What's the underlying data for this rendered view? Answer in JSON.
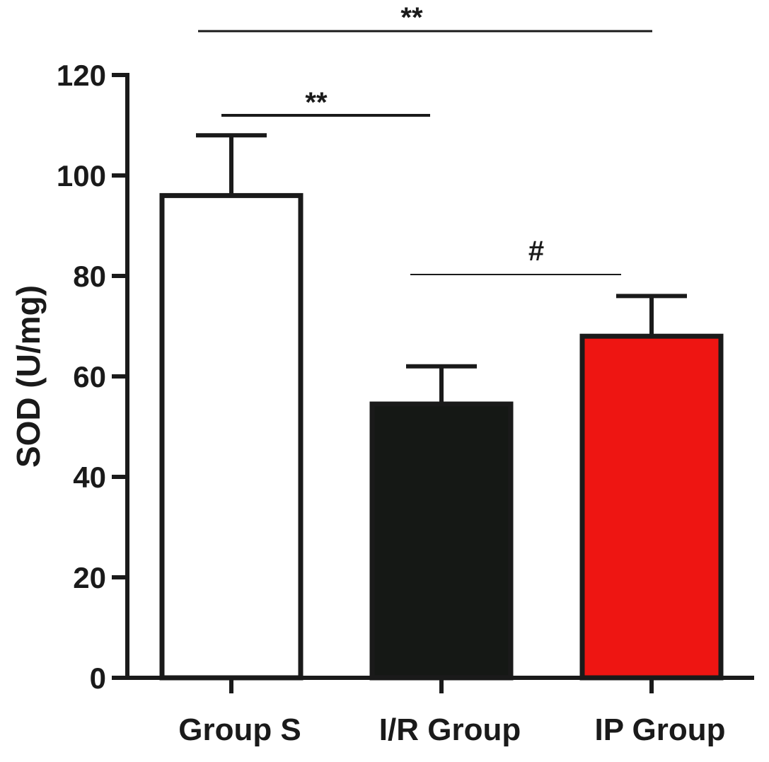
{
  "chart_data": {
    "type": "bar",
    "title": "",
    "xlabel": "",
    "ylabel": "SOD (U/mg)",
    "ylim": [
      0,
      120
    ],
    "yticks": [
      0,
      20,
      40,
      60,
      80,
      100,
      120
    ],
    "categories": [
      "Group S",
      "I/R Group",
      "IP Group"
    ],
    "values": [
      96,
      54.5,
      68
    ],
    "errors": [
      12,
      7.5,
      8
    ],
    "bar_colors": [
      "#ffffff",
      "#151815",
      "#ee1512"
    ],
    "edge_color": "#1a1a1a",
    "grid": false,
    "significance": [
      {
        "from": 0,
        "to": 2,
        "label": "**"
      },
      {
        "from": 0,
        "to": 1,
        "label": "**"
      },
      {
        "from": 1,
        "to": 2,
        "label": "#"
      }
    ]
  }
}
